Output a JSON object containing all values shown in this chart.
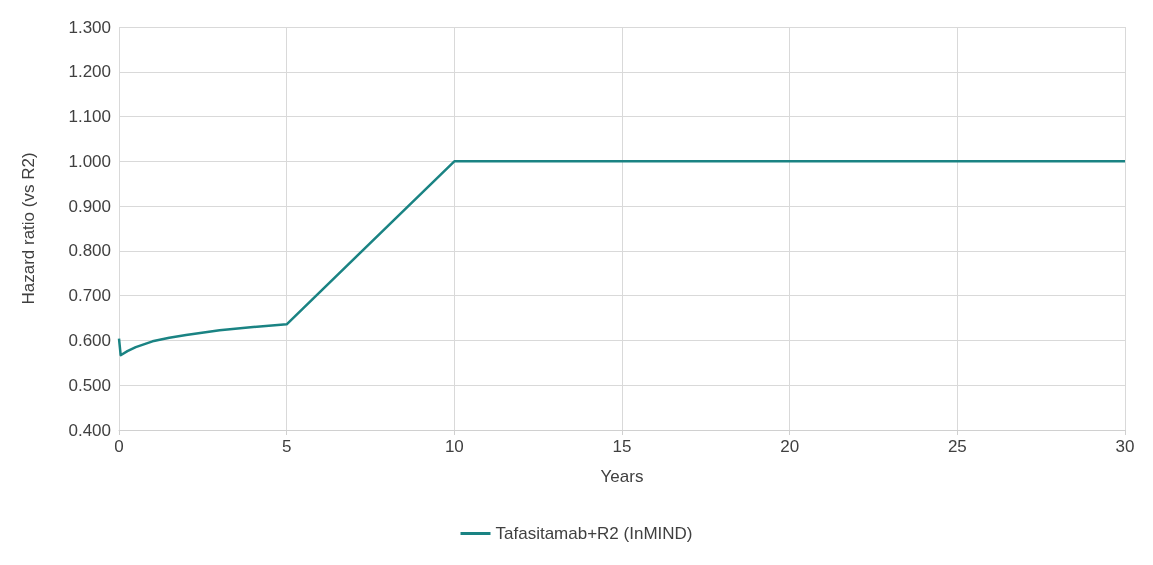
{
  "chart_data": {
    "type": "line",
    "xlabel": "Years",
    "ylabel": "Hazard ratio (vs R2)",
    "series": [
      {
        "name": "Tafasitamab+R2 (InMIND)",
        "color": "#1a8383",
        "x": [
          0,
          0.05,
          0.25,
          0.5,
          1,
          1.5,
          2,
          3,
          4,
          5,
          10,
          30
        ],
        "values": [
          0.604,
          0.567,
          0.576,
          0.585,
          0.598,
          0.606,
          0.612,
          0.623,
          0.63,
          0.636,
          1.0,
          1.0
        ]
      }
    ],
    "xlim": [
      0,
      30
    ],
    "xticks": [
      0,
      5,
      10,
      15,
      20,
      25,
      30
    ],
    "ylim": [
      0.4,
      1.3
    ],
    "yticks": [
      {
        "value": 0.4,
        "label": "0.400"
      },
      {
        "value": 0.5,
        "label": "0.500"
      },
      {
        "value": 0.6,
        "label": "0.600"
      },
      {
        "value": 0.7,
        "label": "0.700"
      },
      {
        "value": 0.8,
        "label": "0.800"
      },
      {
        "value": 0.9,
        "label": "0.900"
      },
      {
        "value": 1.0,
        "label": "1.000"
      },
      {
        "value": 1.1,
        "label": "1.100"
      },
      {
        "value": 1.2,
        "label": "1.200"
      },
      {
        "value": 1.3,
        "label": "1.300"
      }
    ],
    "grid": true,
    "legend": "bottom",
    "marker": "none",
    "line_style": "solid"
  }
}
